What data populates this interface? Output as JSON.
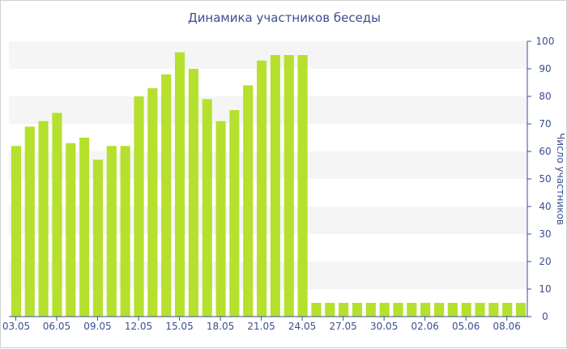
{
  "chart_data": {
    "type": "bar",
    "title": "Динамика участников беседы",
    "ylabel": "Число участников",
    "xlabel": "",
    "ylim": [
      0,
      100
    ],
    "yticks": [
      0,
      10,
      20,
      30,
      40,
      50,
      60,
      70,
      80,
      90,
      100
    ],
    "grid": "alternating horizontal bands",
    "y_axis_side": "right",
    "bar_color": "#b5e02e",
    "band_color": "#f5f5f5",
    "text_color": "#3b4f8f",
    "x_tick_labels": [
      "03.05",
      "06.05",
      "09.05",
      "12.05",
      "15.05",
      "18.05",
      "21.05",
      "24.05",
      "27.05",
      "30.05",
      "02.06",
      "05.06",
      "08.06"
    ],
    "categories": [
      "03.05",
      "04.05",
      "05.05",
      "06.05",
      "07.05",
      "08.05",
      "09.05",
      "10.05",
      "11.05",
      "12.05",
      "13.05",
      "14.05",
      "15.05",
      "16.05",
      "17.05",
      "18.05",
      "19.05",
      "20.05",
      "21.05",
      "22.05",
      "23.05",
      "24.05",
      "25.05",
      "26.05",
      "27.05",
      "28.05",
      "29.05",
      "30.05",
      "31.05",
      "01.06",
      "02.06",
      "03.06",
      "04.06",
      "05.06",
      "06.06",
      "07.06",
      "08.06",
      "09.06"
    ],
    "values": [
      62,
      69,
      71,
      74,
      63,
      65,
      57,
      62,
      62,
      80,
      83,
      88,
      96,
      90,
      79,
      71,
      75,
      84,
      93,
      95,
      95,
      95,
      5,
      5,
      5,
      5,
      5,
      5,
      5,
      5,
      5,
      5,
      5,
      5,
      5,
      5,
      5,
      5
    ]
  }
}
